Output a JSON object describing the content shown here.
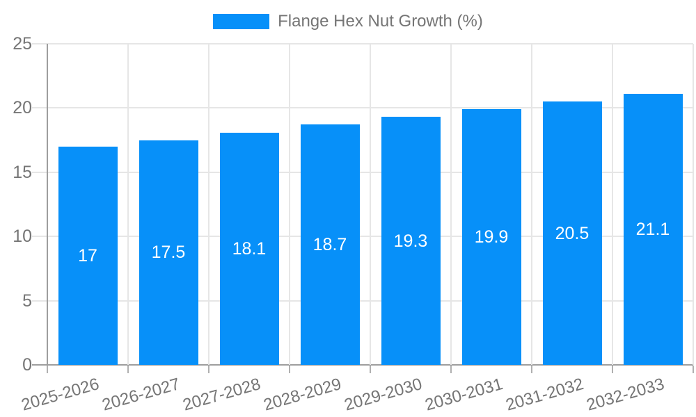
{
  "chart_data": {
    "type": "bar",
    "title": "",
    "legend": {
      "label": "Flange Hex Nut Growth (%)",
      "position": "top-center"
    },
    "categories": [
      "2025-2026",
      "2026-2027",
      "2027-2028",
      "2028-2029",
      "2029-2030",
      "2030-2031",
      "2031-2032",
      "2032-2033"
    ],
    "series": [
      {
        "name": "Flange Hex Nut Growth (%)",
        "values": [
          17,
          17.5,
          18.1,
          18.7,
          19.3,
          19.9,
          20.5,
          21.1
        ]
      }
    ],
    "value_labels": [
      "17",
      "17.5",
      "18.1",
      "18.7",
      "19.3",
      "19.9",
      "20.5",
      "21.1"
    ],
    "xlabel": "",
    "ylabel": "",
    "ylim": [
      0,
      25
    ],
    "yticks": [
      0,
      5,
      10,
      15,
      20,
      25
    ],
    "grid": true,
    "colors": {
      "bar": "#0790f9",
      "axis_line": "#9e9e9e",
      "gridline": "#e6e6e6",
      "x_tick": "#b0b0b0",
      "tick_label": "#757575",
      "value_label": "#ffffff",
      "legend_text": "#757575",
      "background": "#ffffff"
    }
  }
}
